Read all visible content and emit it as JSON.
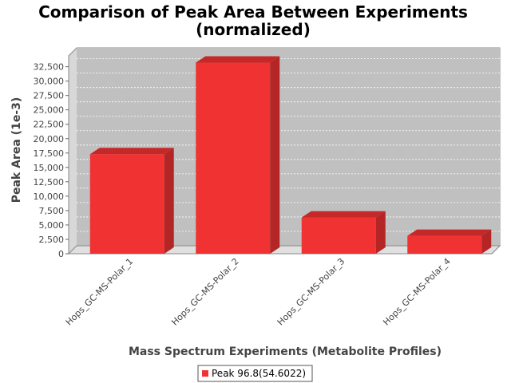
{
  "chart_data": {
    "type": "bar",
    "title_line1": "Comparison of Peak Area Between Experiments",
    "title_line2": "(normalized)",
    "xlabel": "Mass Spectrum Experiments (Metabolite Profiles)",
    "ylabel": "Peak Area (1e-3)",
    "categories": [
      "Hops_GC-MS-Polar_1",
      "Hops_GC-MS-Polar_2",
      "Hops_GC-MS-Polar_3",
      "Hops_GC-MS-Polar_4"
    ],
    "series": [
      {
        "name": "Peak 96.8(54.6022)",
        "values": [
          17300,
          33200,
          6300,
          3100
        ]
      }
    ],
    "ylim": [
      0,
      33000
    ],
    "yticks": [
      0,
      2500,
      5000,
      7500,
      10000,
      12500,
      15000,
      17500,
      20000,
      22500,
      25000,
      27500,
      30000,
      32500
    ],
    "ytick_labels": [
      "0",
      "2,500",
      "5,000",
      "7,500",
      "10,000",
      "12,500",
      "15,000",
      "17,500",
      "20,000",
      "22,500",
      "25,000",
      "27,500",
      "30,000",
      "32,500"
    ],
    "grid": true,
    "legend_position": "bottom",
    "colors": {
      "bar": "#f03232",
      "bar_top": "#c42828",
      "bar_side": "#b42525",
      "plot_bg": "#c0c0c0",
      "wall": "#d8d8d8"
    }
  }
}
